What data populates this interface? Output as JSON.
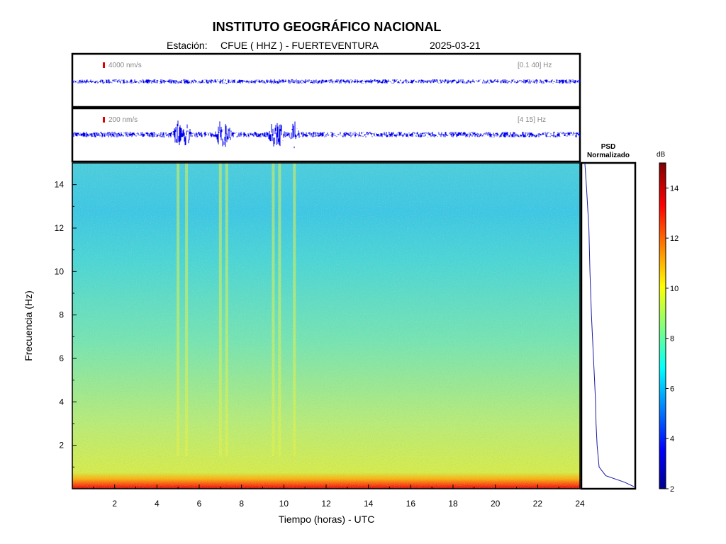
{
  "header": {
    "institute": "INSTITUTO GEOGRÁFICO NACIONAL",
    "station_label": "Estación:",
    "station": "CFUE ( HHZ ) - FUERTEVENTURA",
    "date": "2025-03-21"
  },
  "traces": [
    {
      "scale": "4000 nm/s",
      "band": "[0.1 40] Hz"
    },
    {
      "scale": "200 nm/s",
      "band": "[4 15] Hz"
    }
  ],
  "psd_label": [
    "PSD",
    "Normalizado"
  ],
  "colorbar": {
    "unit": "dB",
    "range": [
      2,
      15
    ],
    "ticks": [
      2,
      4,
      6,
      8,
      10,
      12,
      14
    ]
  },
  "colors": {
    "trace": "#0000ee",
    "psd_line": "#1a1aa0",
    "scale_bar": "#dd0000"
  },
  "chart_data": {
    "type": "heatmap",
    "title": "INSTITUTO GEOGRÁFICO NACIONAL",
    "xlabel": "Tiempo (horas) - UTC",
    "ylabel": "Frecuencia  (Hz)",
    "xlim": [
      0,
      24
    ],
    "ylim": [
      0,
      15
    ],
    "xticks": [
      2,
      4,
      6,
      8,
      10,
      12,
      14,
      16,
      18,
      20,
      22,
      24
    ],
    "yticks": [
      2,
      4,
      6,
      8,
      10,
      12,
      14
    ],
    "colormap": "jet",
    "zunit": "dB",
    "zrange": [
      2,
      15
    ],
    "background_db_by_frequency": [
      {
        "freq": 0.1,
        "db": 14.5
      },
      {
        "freq": 0.5,
        "db": 12.0
      },
      {
        "freq": 1.0,
        "db": 9.5
      },
      {
        "freq": 3.0,
        "db": 9.0
      },
      {
        "freq": 5.0,
        "db": 8.2
      },
      {
        "freq": 8.0,
        "db": 7.5
      },
      {
        "freq": 11.0,
        "db": 6.8
      },
      {
        "freq": 14.0,
        "db": 7.0
      }
    ],
    "events": [
      {
        "time_h": 5.0,
        "db": 10.2
      },
      {
        "time_h": 5.4,
        "db": 10.5
      },
      {
        "time_h": 7.0,
        "db": 10.6
      },
      {
        "time_h": 7.3,
        "db": 10.4
      },
      {
        "time_h": 9.5,
        "db": 10.0
      },
      {
        "time_h": 9.8,
        "db": 10.8
      },
      {
        "time_h": 10.5,
        "db": 10.0
      }
    ],
    "psd_normalizado": {
      "freq": [
        0.1,
        0.3,
        0.6,
        1.0,
        2.0,
        3.0,
        4.0,
        5.0,
        6.0,
        8.0,
        10.0,
        12.0,
        14.0,
        15.0
      ],
      "value": [
        1.0,
        0.82,
        0.45,
        0.32,
        0.28,
        0.26,
        0.25,
        0.23,
        0.21,
        0.17,
        0.14,
        0.12,
        0.07,
        0.04
      ]
    }
  }
}
